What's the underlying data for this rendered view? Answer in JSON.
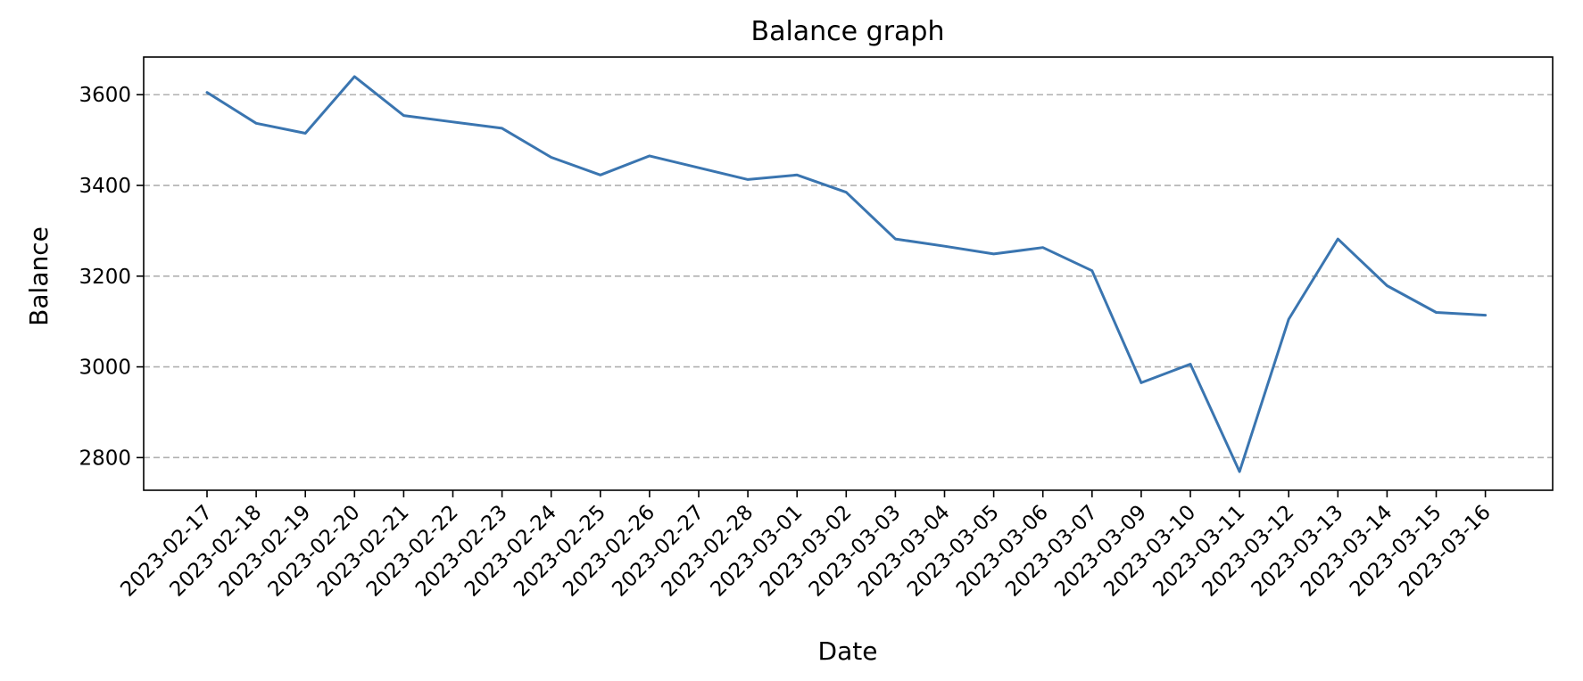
{
  "chart_data": {
    "type": "line",
    "title": "Balance graph",
    "xlabel": "Date",
    "ylabel": "Balance",
    "x": [
      "2023-02-17",
      "2023-02-18",
      "2023-02-19",
      "2023-02-20",
      "2023-02-21",
      "2023-02-22",
      "2023-02-23",
      "2023-02-24",
      "2023-02-25",
      "2023-02-26",
      "2023-02-27",
      "2023-02-28",
      "2023-03-01",
      "2023-03-02",
      "2023-03-03",
      "2023-03-04",
      "2023-03-05",
      "2023-03-06",
      "2023-03-07",
      "2023-03-09",
      "2023-03-10",
      "2023-03-11",
      "2023-03-12",
      "2023-03-13",
      "2023-03-14",
      "2023-03-15",
      "2023-03-16"
    ],
    "series": [
      {
        "values": [
          3605,
          3537,
          3515,
          3640,
          3554,
          3540,
          3526,
          3462,
          3423,
          3465,
          3439,
          3413,
          3423,
          3385,
          3282,
          3266,
          3249,
          3263,
          3212,
          2965,
          3006,
          2769,
          3105,
          3282,
          3179,
          3120,
          3114
        ],
        "color": "#3a75b0"
      }
    ],
    "ylim": [
      2728,
      3683
    ],
    "yticks": [
      2800,
      3000,
      3200,
      3400,
      3600
    ],
    "grid": "horizontal-dashed",
    "legend": "none"
  }
}
